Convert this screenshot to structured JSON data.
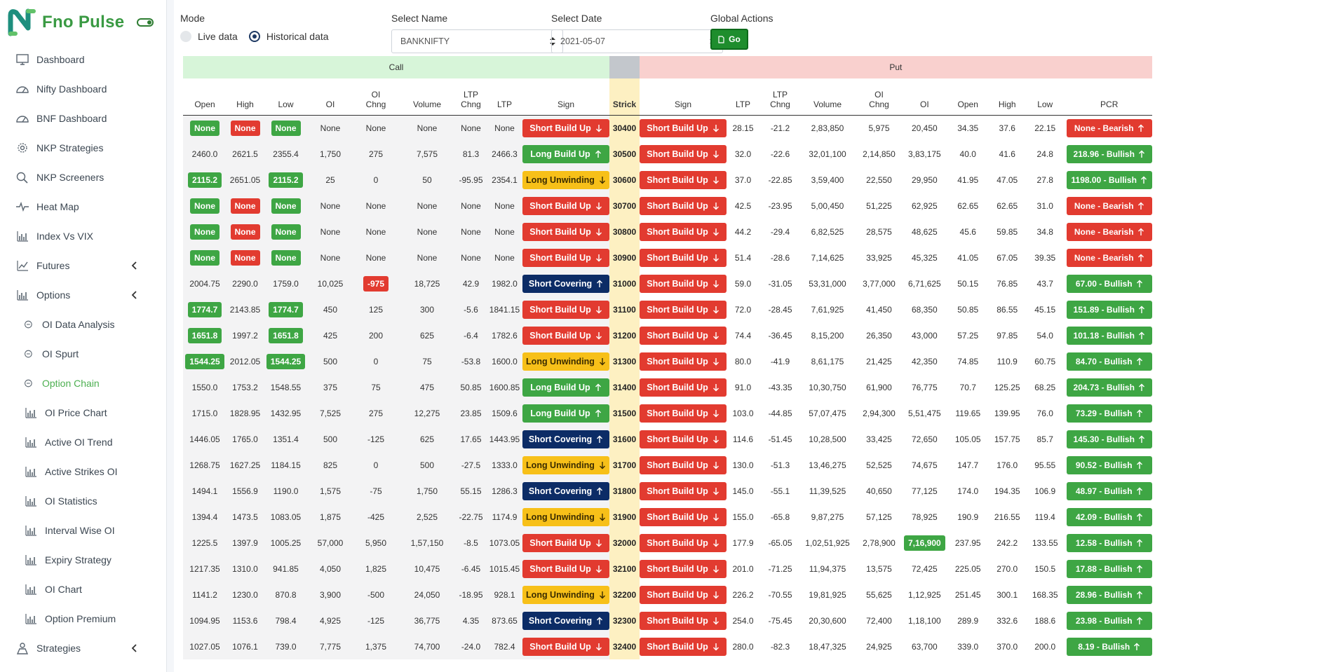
{
  "brand": {
    "name": "Fno Pulse"
  },
  "colors": {
    "accent": "#3a9a43",
    "danger": "#e23b30",
    "success": "#3ea644",
    "warning": "#f7c019",
    "navy": "#0c2c66"
  },
  "sidebar": {
    "items": [
      {
        "label": "Dashboard",
        "icon": "monitor-icon",
        "sub": false
      },
      {
        "label": "Nifty Dashboard",
        "icon": "gauge-icon",
        "sub": false
      },
      {
        "label": "BNF Dashboard",
        "icon": "gauge-icon",
        "sub": false
      },
      {
        "label": "NKP Strategies",
        "icon": "gear-icon",
        "sub": false
      },
      {
        "label": "NKP Screeners",
        "icon": "search-icon",
        "sub": false
      },
      {
        "label": "Heat Map",
        "icon": "pulse-icon",
        "sub": false
      },
      {
        "label": "Index Vs VIX",
        "icon": "bar-chart-icon",
        "sub": false
      },
      {
        "label": "Futures",
        "icon": "line-chart-icon",
        "sub": false,
        "chevron": true
      },
      {
        "label": "Options",
        "icon": "bar-chart-icon",
        "sub": false,
        "chevron": true
      },
      {
        "label": "OI Data Analysis",
        "icon": "circle-icon",
        "sub": true
      },
      {
        "label": "OI Spurt",
        "icon": "circle-icon",
        "sub": true
      },
      {
        "label": "Option Chain",
        "icon": "circle-icon",
        "sub": true,
        "active": true
      },
      {
        "label": "OI Price Chart",
        "icon": "bar-chart-icon",
        "sub": true
      },
      {
        "label": "Active OI Trend",
        "icon": "bar-chart-icon",
        "sub": true
      },
      {
        "label": "Active Strikes OI",
        "icon": "bar-chart-icon",
        "sub": true
      },
      {
        "label": "OI Statistics",
        "icon": "bar-chart-icon",
        "sub": true
      },
      {
        "label": "Interval Wise OI",
        "icon": "bar-chart-icon",
        "sub": true
      },
      {
        "label": "Expiry Strategy",
        "icon": "bar-chart-icon",
        "sub": true
      },
      {
        "label": "OI Chart",
        "icon": "bar-chart-icon",
        "sub": true
      },
      {
        "label": "Option Premium",
        "icon": "bar-chart-icon",
        "sub": true
      },
      {
        "label": "Strategies",
        "icon": "person-icon",
        "sub": false,
        "chevron": true
      }
    ]
  },
  "controls": {
    "mode_label": "Mode",
    "live_label": "Live data",
    "historical_label": "Historical data",
    "name_label": "Select Name",
    "name_value": "BANKNIFTY",
    "date_label": "Select Date",
    "date_value": "2021-05-07",
    "actions_label": "Global Actions",
    "go_label": "Go"
  },
  "chain": {
    "call_label": "Call",
    "put_label": "Put",
    "headers": {
      "call": [
        "Open",
        "High",
        "Low",
        "OI",
        "OI Chng",
        "Volume",
        "LTP Chng",
        "LTP",
        "Sign"
      ],
      "strike": "Strick",
      "put": [
        "Sign",
        "LTP",
        "LTP Chng",
        "Volume",
        "OI Chng",
        "OI",
        "Open",
        "High",
        "Low",
        "PCR"
      ]
    },
    "rows": [
      {
        "strike": "30400",
        "call": {
          "open": "None",
          "high": "None",
          "low": "None",
          "oi": "None",
          "oichng": "None",
          "volume": "None",
          "ltpchng": "None",
          "ltp": "None",
          "sign": "Short Build Up"
        },
        "put": {
          "sign": "Short Build Up",
          "ltp": "28.15",
          "ltpchng": "-21.2",
          "volume": "2,83,850",
          "oichng": "5,975",
          "oi": "20,450",
          "open": "34.35",
          "high": "37.6",
          "low": "22.15",
          "pcr": "None - Bearish"
        }
      },
      {
        "strike": "30500",
        "call": {
          "open": "2460.0",
          "high": "2621.5",
          "low": "2355.4",
          "oi": "1,750",
          "oichng": "275",
          "volume": "7,575",
          "ltpchng": "81.3",
          "ltp": "2466.3",
          "sign": "Long Build Up"
        },
        "put": {
          "sign": "Short Build Up",
          "ltp": "32.0",
          "ltpchng": "-22.6",
          "volume": "32,01,100",
          "oichng": "2,14,850",
          "oi": "3,83,175",
          "open": "40.0",
          "high": "41.6",
          "low": "24.8",
          "pcr": "218.96 - Bullish"
        }
      },
      {
        "strike": "30600",
        "call": {
          "open": "2115.2",
          "high": "2651.05",
          "low": "2115.2",
          "oi": "25",
          "oichng": "0",
          "volume": "50",
          "ltpchng": "-95.95",
          "ltp": "2354.1",
          "sign": "Long Unwinding"
        },
        "put": {
          "sign": "Short Build Up",
          "ltp": "37.0",
          "ltpchng": "-22.85",
          "volume": "3,59,400",
          "oichng": "22,550",
          "oi": "29,950",
          "open": "41.95",
          "high": "47.05",
          "low": "27.8",
          "pcr": "1198.00 - Bullish"
        }
      },
      {
        "strike": "30700",
        "call": {
          "open": "None",
          "high": "None",
          "low": "None",
          "oi": "None",
          "oichng": "None",
          "volume": "None",
          "ltpchng": "None",
          "ltp": "None",
          "sign": "Short Build Up"
        },
        "put": {
          "sign": "Short Build Up",
          "ltp": "42.5",
          "ltpchng": "-23.95",
          "volume": "5,00,450",
          "oichng": "51,225",
          "oi": "62,925",
          "open": "62.65",
          "high": "62.65",
          "low": "31.0",
          "pcr": "None - Bearish"
        }
      },
      {
        "strike": "30800",
        "call": {
          "open": "None",
          "high": "None",
          "low": "None",
          "oi": "None",
          "oichng": "None",
          "volume": "None",
          "ltpchng": "None",
          "ltp": "None",
          "sign": "Short Build Up"
        },
        "put": {
          "sign": "Short Build Up",
          "ltp": "44.2",
          "ltpchng": "-29.4",
          "volume": "6,82,525",
          "oichng": "28,575",
          "oi": "48,625",
          "open": "45.6",
          "high": "59.85",
          "low": "34.8",
          "pcr": "None - Bearish"
        }
      },
      {
        "strike": "30900",
        "call": {
          "open": "None",
          "high": "None",
          "low": "None",
          "oi": "None",
          "oichng": "None",
          "volume": "None",
          "ltpchng": "None",
          "ltp": "None",
          "sign": "Short Build Up"
        },
        "put": {
          "sign": "Short Build Up",
          "ltp": "51.4",
          "ltpchng": "-28.6",
          "volume": "7,14,625",
          "oichng": "33,925",
          "oi": "45,325",
          "open": "41.05",
          "high": "67.05",
          "low": "39.35",
          "pcr": "None - Bearish"
        }
      },
      {
        "strike": "31000",
        "call": {
          "open": "2004.75",
          "high": "2290.0",
          "low": "1759.0",
          "oi": "10,025",
          "oichng": "-975",
          "volume": "18,725",
          "ltpchng": "42.9",
          "ltp": "1982.0",
          "sign": "Short Covering"
        },
        "put": {
          "sign": "Short Build Up",
          "ltp": "59.0",
          "ltpchng": "-31.05",
          "volume": "53,31,000",
          "oichng": "3,77,000",
          "oi": "6,71,625",
          "open": "50.15",
          "high": "76.85",
          "low": "43.7",
          "pcr": "67.00 - Bullish"
        }
      },
      {
        "strike": "31100",
        "call": {
          "open": "1774.7",
          "high": "2143.85",
          "low": "1774.7",
          "oi": "450",
          "oichng": "125",
          "volume": "300",
          "ltpchng": "-5.6",
          "ltp": "1841.15",
          "sign": "Short Build Up"
        },
        "put": {
          "sign": "Short Build Up",
          "ltp": "72.0",
          "ltpchng": "-28.45",
          "volume": "7,61,925",
          "oichng": "41,450",
          "oi": "68,350",
          "open": "50.85",
          "high": "86.55",
          "low": "45.15",
          "pcr": "151.89 - Bullish"
        }
      },
      {
        "strike": "31200",
        "call": {
          "open": "1651.8",
          "high": "1997.2",
          "low": "1651.8",
          "oi": "425",
          "oichng": "200",
          "volume": "625",
          "ltpchng": "-6.4",
          "ltp": "1782.6",
          "sign": "Short Build Up"
        },
        "put": {
          "sign": "Short Build Up",
          "ltp": "74.4",
          "ltpchng": "-36.45",
          "volume": "8,15,200",
          "oichng": "26,350",
          "oi": "43,000",
          "open": "57.25",
          "high": "97.85",
          "low": "54.0",
          "pcr": "101.18 - Bullish"
        }
      },
      {
        "strike": "31300",
        "call": {
          "open": "1544.25",
          "high": "2012.05",
          "low": "1544.25",
          "oi": "500",
          "oichng": "0",
          "volume": "75",
          "ltpchng": "-53.8",
          "ltp": "1600.0",
          "sign": "Long Unwinding"
        },
        "put": {
          "sign": "Short Build Up",
          "ltp": "80.0",
          "ltpchng": "-41.9",
          "volume": "8,61,175",
          "oichng": "21,425",
          "oi": "42,350",
          "open": "74.85",
          "high": "110.9",
          "low": "60.75",
          "pcr": "84.70 - Bullish"
        }
      },
      {
        "strike": "31400",
        "call": {
          "open": "1550.0",
          "high": "1753.2",
          "low": "1548.55",
          "oi": "375",
          "oichng": "75",
          "volume": "475",
          "ltpchng": "50.85",
          "ltp": "1600.85",
          "sign": "Long Build Up"
        },
        "put": {
          "sign": "Short Build Up",
          "ltp": "91.0",
          "ltpchng": "-43.35",
          "volume": "10,30,750",
          "oichng": "61,900",
          "oi": "76,775",
          "open": "70.7",
          "high": "125.25",
          "low": "68.25",
          "pcr": "204.73 - Bullish"
        }
      },
      {
        "strike": "31500",
        "call": {
          "open": "1715.0",
          "high": "1828.95",
          "low": "1432.95",
          "oi": "7,525",
          "oichng": "275",
          "volume": "12,275",
          "ltpchng": "23.85",
          "ltp": "1509.6",
          "sign": "Long Build Up"
        },
        "put": {
          "sign": "Short Build Up",
          "ltp": "103.0",
          "ltpchng": "-44.85",
          "volume": "57,07,475",
          "oichng": "2,94,300",
          "oi": "5,51,475",
          "open": "119.65",
          "high": "139.95",
          "low": "76.0",
          "pcr": "73.29 - Bullish"
        }
      },
      {
        "strike": "31600",
        "call": {
          "open": "1446.05",
          "high": "1765.0",
          "low": "1351.4",
          "oi": "500",
          "oichng": "-125",
          "volume": "625",
          "ltpchng": "17.65",
          "ltp": "1443.95",
          "sign": "Short Covering"
        },
        "put": {
          "sign": "Short Build Up",
          "ltp": "114.6",
          "ltpchng": "-51.45",
          "volume": "10,28,500",
          "oichng": "33,425",
          "oi": "72,650",
          "open": "105.05",
          "high": "157.75",
          "low": "85.7",
          "pcr": "145.30 - Bullish"
        }
      },
      {
        "strike": "31700",
        "call": {
          "open": "1268.75",
          "high": "1627.25",
          "low": "1184.15",
          "oi": "825",
          "oichng": "0",
          "volume": "500",
          "ltpchng": "-27.5",
          "ltp": "1333.0",
          "sign": "Long Unwinding"
        },
        "put": {
          "sign": "Short Build Up",
          "ltp": "130.0",
          "ltpchng": "-51.3",
          "volume": "13,46,275",
          "oichng": "52,525",
          "oi": "74,675",
          "open": "147.7",
          "high": "176.0",
          "low": "95.55",
          "pcr": "90.52 - Bullish"
        }
      },
      {
        "strike": "31800",
        "call": {
          "open": "1494.1",
          "high": "1556.9",
          "low": "1190.0",
          "oi": "1,575",
          "oichng": "-75",
          "volume": "1,750",
          "ltpchng": "55.15",
          "ltp": "1286.3",
          "sign": "Short Covering"
        },
        "put": {
          "sign": "Short Build Up",
          "ltp": "145.0",
          "ltpchng": "-55.1",
          "volume": "11,39,525",
          "oichng": "40,650",
          "oi": "77,125",
          "open": "174.0",
          "high": "194.35",
          "low": "106.9",
          "pcr": "48.97 - Bullish"
        }
      },
      {
        "strike": "31900",
        "call": {
          "open": "1394.4",
          "high": "1473.5",
          "low": "1083.05",
          "oi": "1,875",
          "oichng": "-425",
          "volume": "2,525",
          "ltpchng": "-22.75",
          "ltp": "1174.9",
          "sign": "Long Unwinding"
        },
        "put": {
          "sign": "Short Build Up",
          "ltp": "155.0",
          "ltpchng": "-65.8",
          "volume": "9,87,275",
          "oichng": "57,125",
          "oi": "78,925",
          "open": "190.9",
          "high": "216.55",
          "low": "119.4",
          "pcr": "42.09 - Bullish"
        }
      },
      {
        "strike": "32000",
        "call": {
          "open": "1225.5",
          "high": "1397.9",
          "low": "1005.25",
          "oi": "57,000",
          "oichng": "5,950",
          "volume": "1,57,150",
          "ltpchng": "-8.5",
          "ltp": "1073.05",
          "sign": "Short Build Up"
        },
        "put": {
          "sign": "Short Build Up",
          "ltp": "177.9",
          "ltpchng": "-65.05",
          "volume": "1,02,51,925",
          "oichng": "2,78,900",
          "oi": "7,16,900",
          "oi_highlight": true,
          "open": "237.95",
          "high": "242.2",
          "low": "133.55",
          "pcr": "12.58 - Bullish"
        }
      },
      {
        "strike": "32100",
        "call": {
          "open": "1217.35",
          "high": "1310.0",
          "low": "941.85",
          "oi": "4,050",
          "oichng": "1,825",
          "volume": "10,475",
          "ltpchng": "-6.45",
          "ltp": "1015.45",
          "sign": "Short Build Up"
        },
        "put": {
          "sign": "Short Build Up",
          "ltp": "201.0",
          "ltpchng": "-71.25",
          "volume": "11,94,375",
          "oichng": "13,575",
          "oi": "72,425",
          "open": "225.05",
          "high": "270.0",
          "low": "150.5",
          "pcr": "17.88 - Bullish"
        }
      },
      {
        "strike": "32200",
        "call": {
          "open": "1141.2",
          "high": "1230.0",
          "low": "870.8",
          "oi": "3,900",
          "oichng": "-500",
          "volume": "24,050",
          "ltpchng": "-18.95",
          "ltp": "928.1",
          "sign": "Long Unwinding"
        },
        "put": {
          "sign": "Short Build Up",
          "ltp": "226.2",
          "ltpchng": "-70.55",
          "volume": "19,81,925",
          "oichng": "55,625",
          "oi": "1,12,925",
          "open": "251.45",
          "high": "300.1",
          "low": "168.35",
          "pcr": "28.96 - Bullish"
        }
      },
      {
        "strike": "32300",
        "call": {
          "open": "1094.95",
          "high": "1153.6",
          "low": "798.4",
          "oi": "4,925",
          "oichng": "-125",
          "volume": "36,775",
          "ltpchng": "4.35",
          "ltp": "873.65",
          "sign": "Short Covering"
        },
        "put": {
          "sign": "Short Build Up",
          "ltp": "254.0",
          "ltpchng": "-75.45",
          "volume": "20,30,600",
          "oichng": "72,400",
          "oi": "1,18,100",
          "open": "289.9",
          "high": "332.6",
          "low": "188.6",
          "pcr": "23.98 - Bullish"
        }
      },
      {
        "strike": "32400",
        "call": {
          "open": "1027.05",
          "high": "1076.1",
          "low": "739.0",
          "oi": "7,775",
          "oichng": "1,375",
          "volume": "74,700",
          "ltpchng": "-24.0",
          "ltp": "782.4",
          "sign": "Short Build Up"
        },
        "put": {
          "sign": "Short Build Up",
          "ltp": "280.0",
          "ltpchng": "-82.3",
          "volume": "18,47,325",
          "oichng": "24,925",
          "oi": "63,700",
          "open": "339.0",
          "high": "370.0",
          "low": "200.0",
          "pcr": "8.19 - Bullish"
        }
      }
    ]
  }
}
